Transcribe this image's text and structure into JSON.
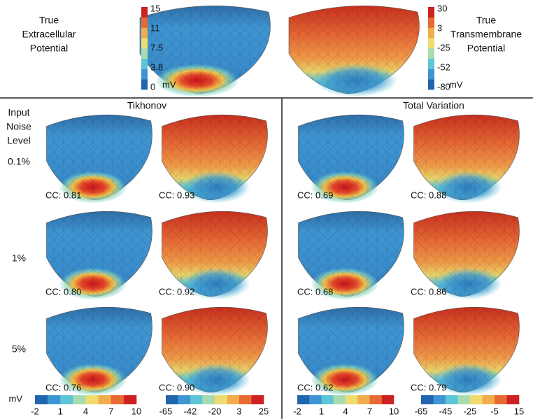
{
  "true_extracellular": {
    "label": [
      "True",
      "Extracellular",
      "Potential"
    ],
    "colorbar": {
      "ticks": [
        "15",
        "11",
        "7.5",
        "3.8",
        "0"
      ],
      "unit": "mV"
    }
  },
  "true_transmembrane": {
    "label": [
      "True",
      "Transmembrane",
      "Potential"
    ],
    "colorbar": {
      "ticks": [
        "30",
        "3",
        "-25",
        "-52",
        "-80"
      ],
      "unit": "mV"
    }
  },
  "row_header": [
    "Input",
    "Noise",
    "Level"
  ],
  "noise_levels": [
    "0.1%",
    "1%",
    "5%"
  ],
  "methods": [
    {
      "title": "Tikhonov",
      "cc": [
        [
          "CC: 0.81",
          "CC: 0.93"
        ],
        [
          "CC: 0.80",
          "CC: 0.92"
        ],
        [
          "CC: 0.76",
          "CC: 0.90"
        ]
      ],
      "colorbars": [
        {
          "unit": "mV",
          "ticks": [
            "-2",
            "1",
            "4",
            "7",
            "10"
          ]
        },
        {
          "ticks": [
            "-65",
            "-42",
            "-20",
            "3",
            "25"
          ]
        }
      ]
    },
    {
      "title": "Total Variation",
      "cc": [
        [
          "CC: 0.69",
          "CC: 0.88"
        ],
        [
          "CC: 0.68",
          "CC: 0.86"
        ],
        [
          "CC: 0.62",
          "CC: 0.79"
        ]
      ],
      "colorbars": [
        {
          "ticks": [
            "-2",
            "1",
            "4",
            "7",
            "10"
          ]
        },
        {
          "ticks": [
            "-65",
            "-45",
            "-25",
            "-5",
            "15"
          ]
        }
      ]
    }
  ]
}
